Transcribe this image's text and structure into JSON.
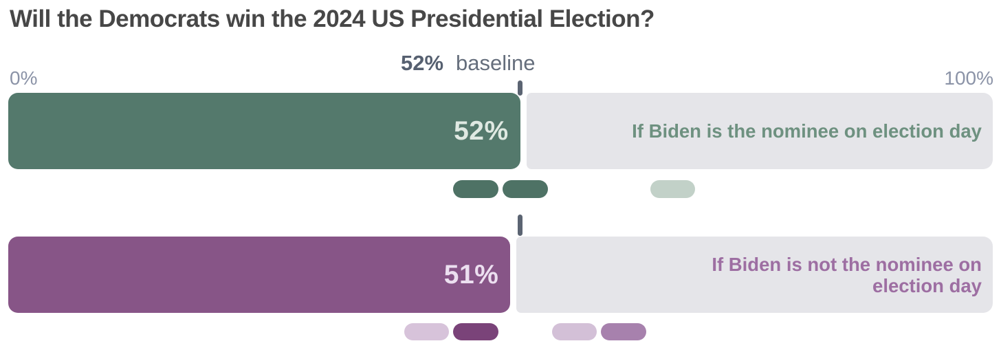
{
  "title": "Will the Democrats win the 2024 US Presidential Election?",
  "baseline": {
    "value": "52%",
    "label": "baseline"
  },
  "axis": {
    "min_label": "0%",
    "max_label": "100%"
  },
  "chart_data": {
    "type": "bar",
    "orientation": "horizontal",
    "title": "Will the Democrats win the 2024 US Presidential Election?",
    "axis_range_pct": [
      0,
      100
    ],
    "baseline_pct": 52,
    "baseline_caption": "52% baseline",
    "track_color": "#e5e5e9",
    "tick_color": "#5b6472",
    "series": [
      {
        "label": "If Biden is the nominee on election day",
        "value_pct": 52,
        "value_label": "52%",
        "bar_color": "#54796c",
        "value_text_color": "#dfe9e2",
        "label_color": "#6e9180",
        "markers": [
          {
            "from_pct": 45,
            "to_pct": 50,
            "color": "#4e7265"
          },
          {
            "from_pct": 50,
            "to_pct": 55,
            "color": "#4e7265"
          },
          {
            "from_pct": 65,
            "to_pct": 70,
            "color": "#c2d1c8"
          }
        ]
      },
      {
        "label": "If Biden is not the nominee on election day",
        "value_pct": 51,
        "value_label": "51%",
        "bar_color": "#875587",
        "value_text_color": "#ecdff0",
        "label_color": "#9d6ea2",
        "markers": [
          {
            "from_pct": 40,
            "to_pct": 45,
            "color": "#d7c3da"
          },
          {
            "from_pct": 45,
            "to_pct": 50,
            "color": "#7a4379"
          },
          {
            "from_pct": 55,
            "to_pct": 60,
            "color": "#d3c0d7"
          },
          {
            "from_pct": 60,
            "to_pct": 65,
            "color": "#a781ad"
          }
        ]
      }
    ]
  },
  "colors": {
    "background": "#ffffff",
    "title_text": "#474747",
    "baseline_value_text": "#566070",
    "baseline_label_text": "#656e7c",
    "axis_label_text": "#8b93a7"
  }
}
